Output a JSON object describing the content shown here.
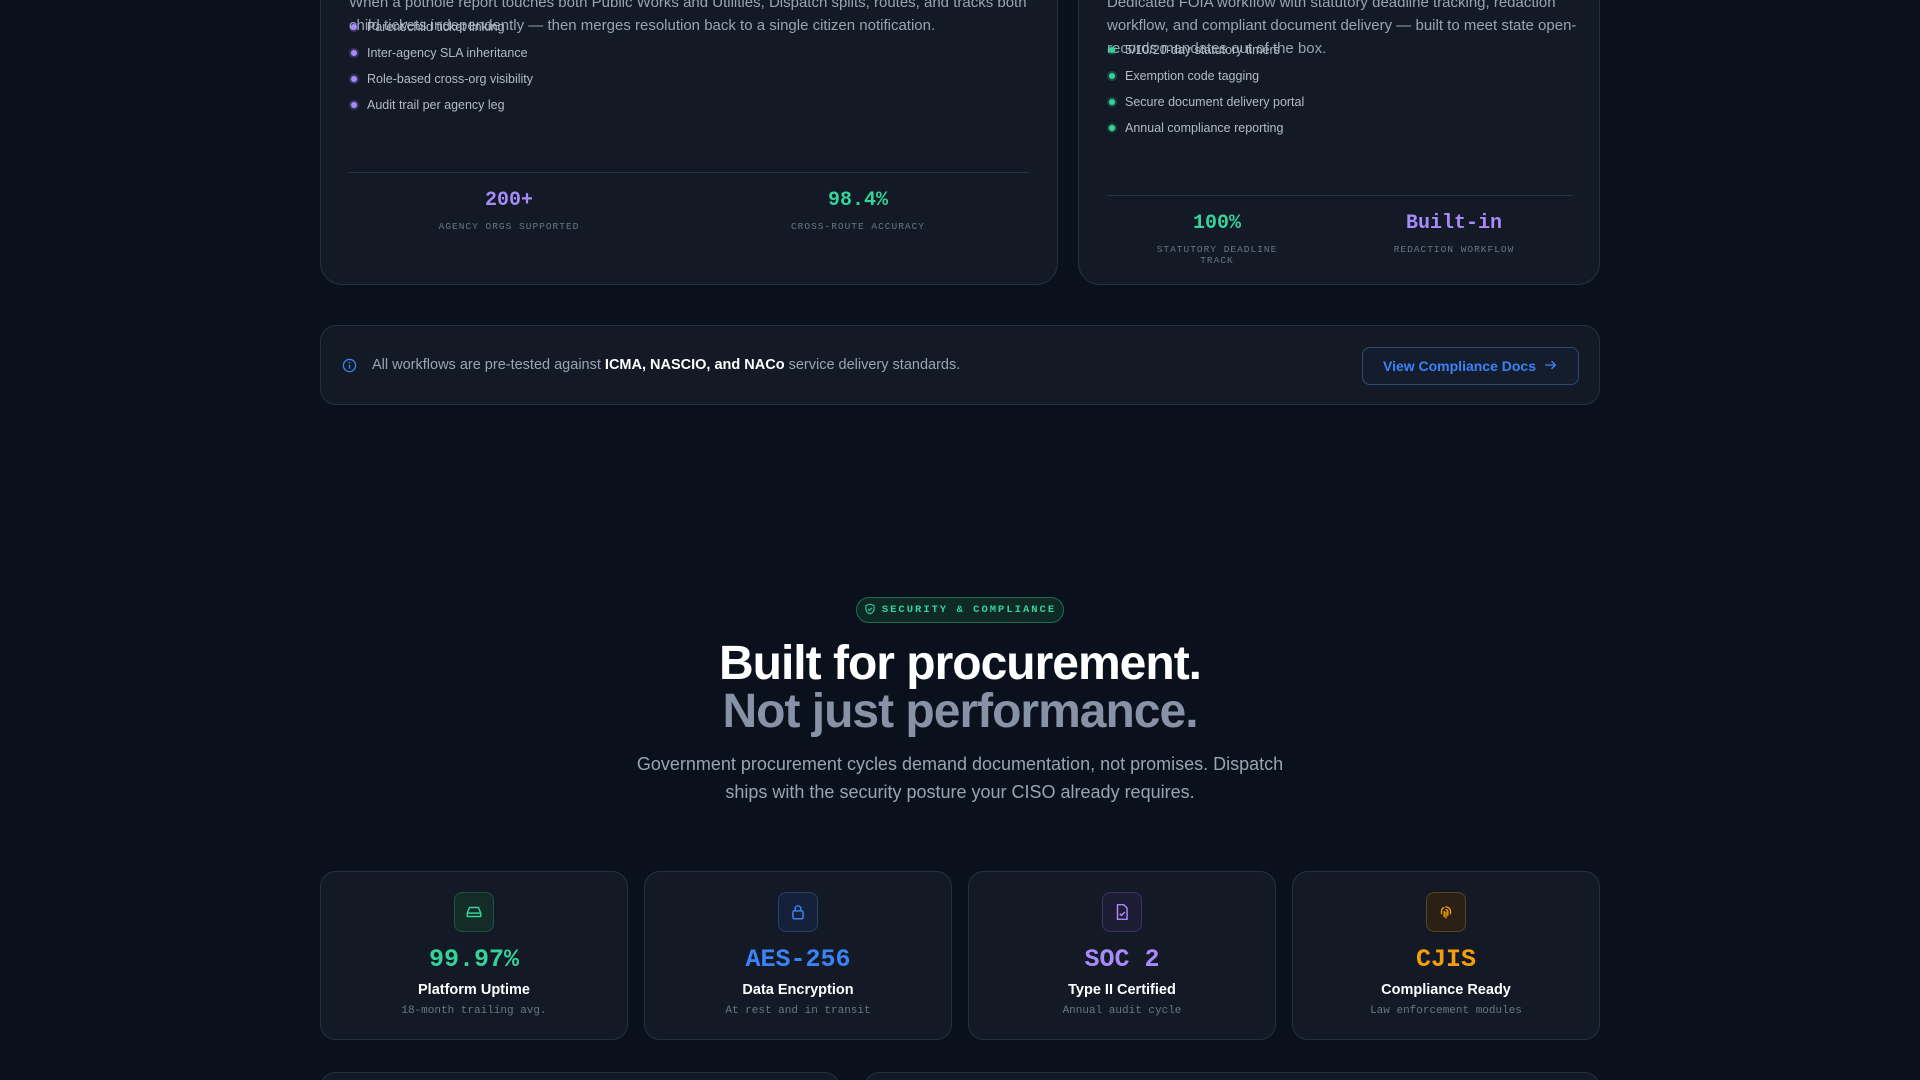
{
  "multi_agency": {
    "description": "When a pothole report touches both Public Works and Utilities, Dispatch splits, routes, and tracks both child tickets independently — then merges resolution back to a single citizen notification.",
    "features": [
      "Parent/child ticket linking",
      "Inter-agency SLA inheritance",
      "Role-based cross-org visibility",
      "Audit trail per agency leg"
    ],
    "stats": [
      {
        "value": "200+",
        "label": "AGENCY ORGS SUPPORTED"
      },
      {
        "value": "98.4%",
        "label": "CROSS-ROUTE ACCURACY"
      }
    ]
  },
  "foia": {
    "description": "Dedicated FOIA workflow with statutory deadline tracking, redaction workflow, and compliant document delivery — built to meet state open-records mandates out of the box.",
    "features": [
      "5/10/20-day statutory timers",
      "Exemption code tagging",
      "Secure document delivery portal",
      "Annual compliance reporting"
    ],
    "stats": [
      {
        "value": "100%",
        "label": "STATUTORY DEADLINE TRACK"
      },
      {
        "value": "Built-in",
        "label": "REDACTION WORKFLOW"
      }
    ]
  },
  "notice": {
    "prefix": "All workflows are pre-tested against",
    "bold": "ICMA, NASCIO, and NACo",
    "suffix": "service delivery standards.",
    "button_label": "View Compliance Docs"
  },
  "security": {
    "badge": "SECURITY & COMPLIANCE",
    "heading_line1": "Built for procurement.",
    "heading_line2": "Not just performance.",
    "lead": "Government procurement cycles demand documentation, not promises. Dispatch ships with the security posture your CISO already requires.",
    "tiles": [
      {
        "icon": "server-icon",
        "value": "99.97%",
        "title": "Platform Uptime",
        "sub": "18-month trailing avg.",
        "color": "#34d399"
      },
      {
        "icon": "lock-icon",
        "value": "AES-256",
        "title": "Data Encryption",
        "sub": "At rest and in transit",
        "color": "#3b82f6"
      },
      {
        "icon": "file-check-icon",
        "value": "SOC 2",
        "title": "Type II Certified",
        "sub": "Annual audit cycle",
        "color": "#a78bfa"
      },
      {
        "icon": "fingerprint-icon",
        "value": "CJIS",
        "title": "Compliance Ready",
        "sub": "Law enforcement modules",
        "color": "#f59e0b"
      }
    ]
  },
  "colors": {
    "background": "#0b111c",
    "card": "#131a26",
    "green": "#34d399",
    "blue": "#3b82f6",
    "purple": "#a78bfa",
    "amber": "#f59e0b"
  }
}
